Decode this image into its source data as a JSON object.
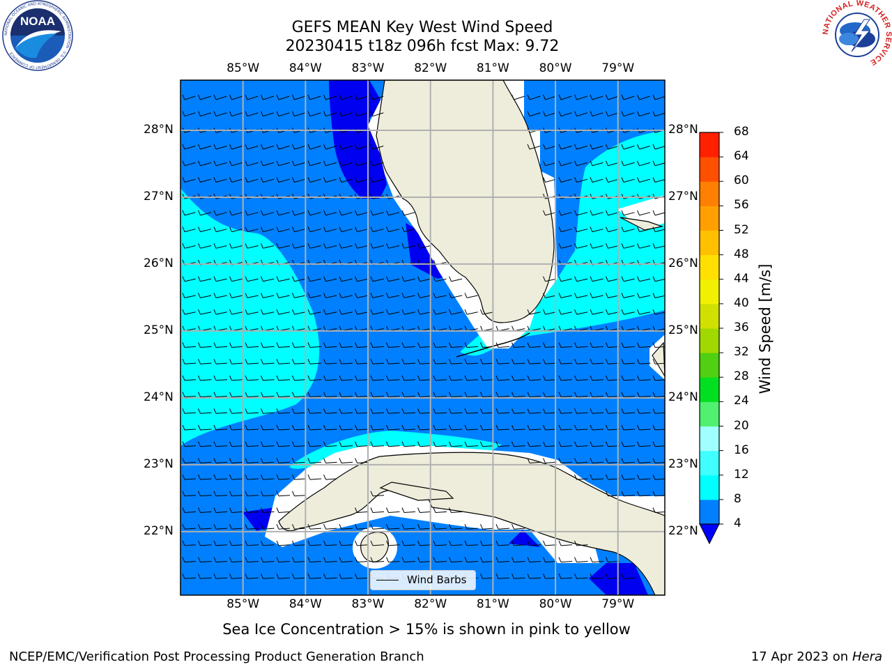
{
  "title": {
    "line1": "GEFS MEAN Key West Wind Speed",
    "line2": "20230415 t18z 096h fcst   Max: 9.72"
  },
  "logos": {
    "noaa_text": "NOAA",
    "noaa_ring": "NATIONAL OCEANIC AND ATMOSPHERIC ADMINISTRATION · U.S. DEPARTMENT OF COMMERCE",
    "nws_ring": "NATIONAL WEATHER SERVICE"
  },
  "map": {
    "lon_range": [
      -86,
      -78.25
    ],
    "lat_range": [
      21.05,
      28.75
    ],
    "lon_labels": [
      "85°W",
      "84°W",
      "83°W",
      "82°W",
      "81°W",
      "80°W",
      "79°W"
    ],
    "lat_labels": [
      "22°N",
      "23°N",
      "24°N",
      "25°N",
      "26°N",
      "27°N",
      "28°N"
    ],
    "field": "Wind Speed",
    "max_value": 9.72,
    "grid": true
  },
  "legend": {
    "label": "Wind Barbs",
    "placement": "bottom-center"
  },
  "colorbar": {
    "label": "Wind Speed [m/s]",
    "ticks": [
      "4",
      "8",
      "12",
      "16",
      "20",
      "24",
      "28",
      "32",
      "36",
      "40",
      "44",
      "48",
      "52",
      "56",
      "60",
      "64",
      "68"
    ],
    "colors": [
      "#0080ff",
      "#00ffff",
      "#40ffff",
      "#a0ffff",
      "#50f070",
      "#00e020",
      "#50d010",
      "#a0d800",
      "#d0e000",
      "#f0f000",
      "#ffe000",
      "#ffc000",
      "#ffa000",
      "#ff8000",
      "#ff5000",
      "#ff2000"
    ],
    "extend_color": "#0000ff"
  },
  "subnote": "Sea Ice Concentration > 15% is shown in pink to yellow",
  "footer": {
    "left": "NCEP/EMC/Verification Post Processing Product Generation Branch",
    "right_date": "17 Apr 2023 on ",
    "right_machine": "Hera"
  }
}
